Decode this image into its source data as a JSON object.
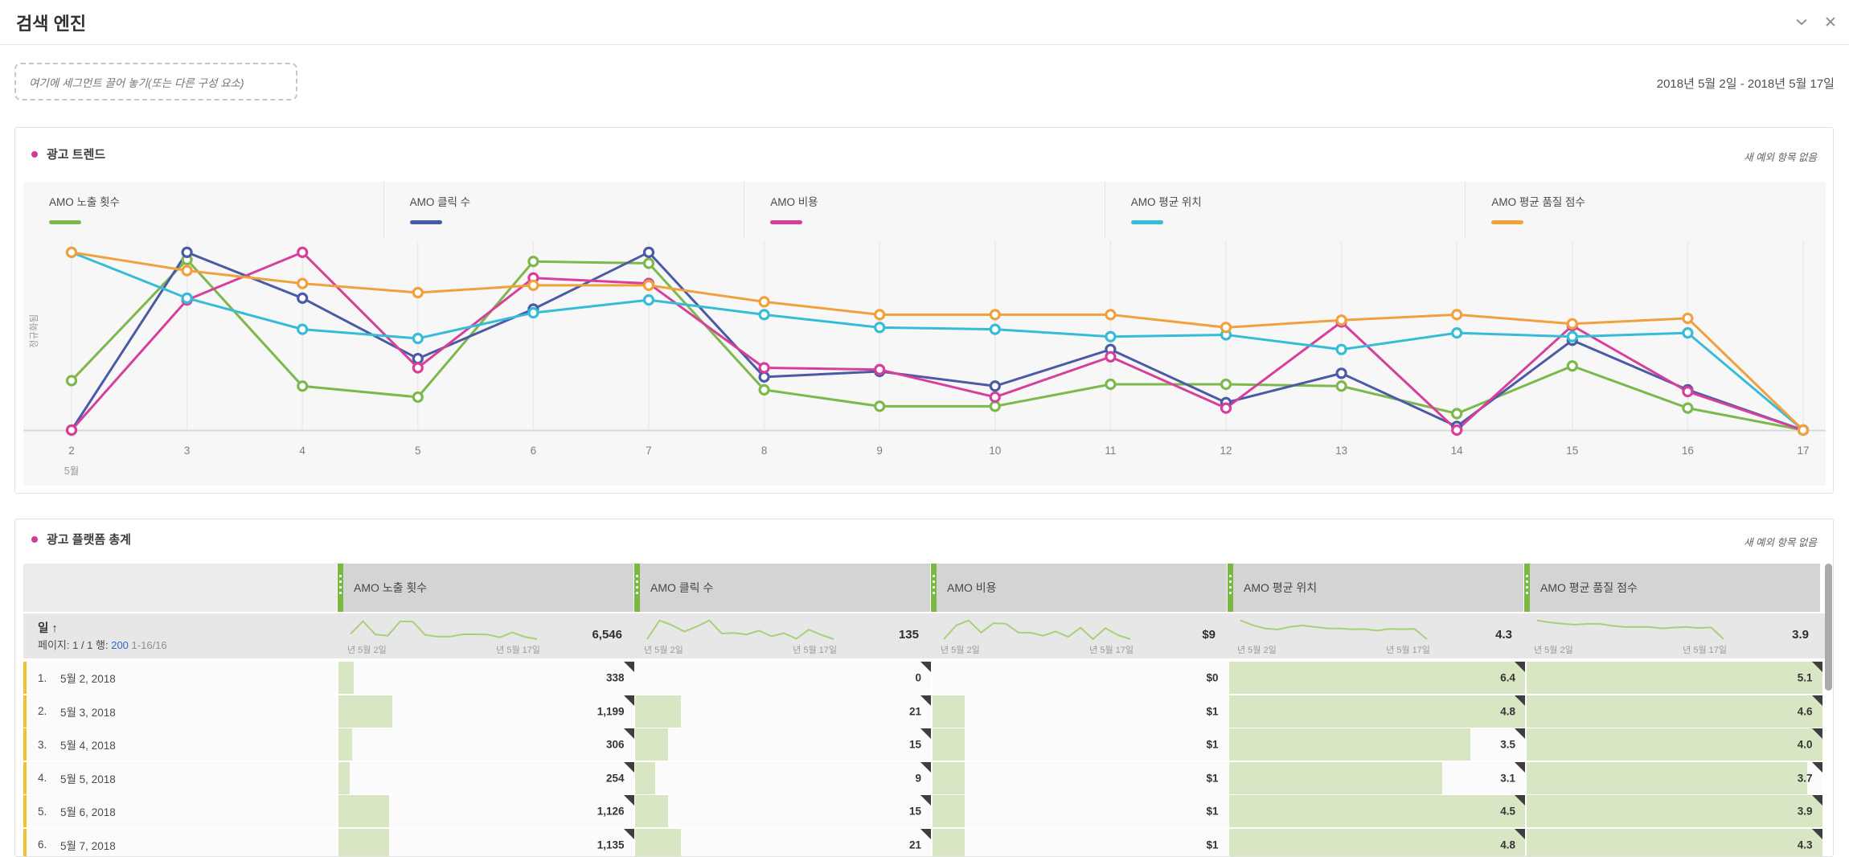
{
  "window": {
    "title": "검색 엔진"
  },
  "toolbar": {
    "segment_dropzone": "여기에 세그먼트 끌어 놓기(또는 다른 구성 요소)",
    "date_range": "2018년 5월 2일 - 2018년 5월 17일"
  },
  "panels": {
    "trend": {
      "title": "광고 트렌드",
      "no_anomalies": "새 예외 항목 없음"
    },
    "totals": {
      "title": "광고 플랫폼 총계",
      "no_anomalies": "새 예외 항목 없음"
    }
  },
  "chart_data": {
    "type": "line",
    "title": "광고 트렌드",
    "ylabel": "정규화됨",
    "xlabel_month": "5월",
    "x": [
      2,
      3,
      4,
      5,
      6,
      7,
      8,
      9,
      10,
      11,
      12,
      13,
      14,
      15,
      16,
      17
    ],
    "normalized": true,
    "ylim": [
      0,
      100
    ],
    "grid": "vertical",
    "legend_position": "top",
    "series": [
      {
        "name": "AMO 노출 횟수",
        "color": "#7cb84c",
        "values": [
          27,
          93,
          24,
          18,
          92,
          91,
          22,
          13,
          13,
          25,
          25,
          24,
          9,
          35,
          12,
          0
        ]
      },
      {
        "name": "AMO 클릭 수",
        "color": "#4a5aa5",
        "values": [
          0,
          97,
          72,
          39,
          66,
          97,
          29,
          32,
          24,
          44,
          15,
          31,
          2,
          49,
          22,
          0
        ]
      },
      {
        "name": "AMO 비용",
        "color": "#d6409b",
        "values": [
          0,
          71,
          97,
          34,
          83,
          80,
          34,
          33,
          18,
          40,
          12,
          59,
          0,
          57,
          21,
          0
        ]
      },
      {
        "name": "AMO 평균 위치",
        "color": "#36bcd6",
        "values": [
          97,
          72,
          55,
          50,
          64,
          71,
          63,
          56,
          55,
          51,
          52,
          44,
          53,
          51,
          53,
          0
        ]
      },
      {
        "name": "AMO 평균 품질 점수",
        "color": "#f0a13e",
        "values": [
          97,
          87,
          80,
          75,
          79,
          79,
          70,
          63,
          63,
          63,
          56,
          60,
          63,
          58,
          61,
          0
        ]
      }
    ]
  },
  "table": {
    "dimension": {
      "label": "일",
      "sort_arrow": "↑",
      "pagination_prefix": "페이지: 1 / 1 행:",
      "rows_link": "200",
      "range": "1-16/16"
    },
    "spark_labels": {
      "start": "년 5월 2일",
      "end": "년 5월 17일"
    },
    "columns": [
      {
        "label": "AMO 노출 횟수",
        "total": "6,546",
        "total_num": 6546,
        "style": "bar",
        "anomaly": true,
        "spark_series": 0
      },
      {
        "label": "AMO 클릭 수",
        "total": "135",
        "total_num": 135,
        "style": "bar",
        "anomaly": true,
        "spark_series": 1
      },
      {
        "label": "AMO 비용",
        "total": "$9",
        "total_num": 9,
        "style": "bar",
        "anomaly": false,
        "spark_series": 2
      },
      {
        "label": "AMO 평균 위치",
        "total": "4.3",
        "total_num": 4.3,
        "style": "fill",
        "anomaly": true,
        "spark_series": 3
      },
      {
        "label": "AMO 평균 품질 점수",
        "total": "3.9",
        "total_num": 3.9,
        "style": "fill",
        "anomaly": true,
        "spark_series": 4
      }
    ],
    "rows": [
      {
        "idx": "1.",
        "date": "5월 2, 2018",
        "cells": [
          {
            "text": "338",
            "num": 338
          },
          {
            "text": "0",
            "num": 0
          },
          {
            "text": "$0",
            "num": 0
          },
          {
            "text": "6.4",
            "num": 6.4
          },
          {
            "text": "5.1",
            "num": 5.1
          }
        ]
      },
      {
        "idx": "2.",
        "date": "5월 3, 2018",
        "cells": [
          {
            "text": "1,199",
            "num": 1199
          },
          {
            "text": "21",
            "num": 21
          },
          {
            "text": "$1",
            "num": 1
          },
          {
            "text": "4.8",
            "num": 4.8
          },
          {
            "text": "4.6",
            "num": 4.6
          }
        ]
      },
      {
        "idx": "3.",
        "date": "5월 4, 2018",
        "cells": [
          {
            "text": "306",
            "num": 306
          },
          {
            "text": "15",
            "num": 15
          },
          {
            "text": "$1",
            "num": 1
          },
          {
            "text": "3.5",
            "num": 3.5
          },
          {
            "text": "4.0",
            "num": 4.0
          }
        ]
      },
      {
        "idx": "4.",
        "date": "5월 5, 2018",
        "cells": [
          {
            "text": "254",
            "num": 254
          },
          {
            "text": "9",
            "num": 9
          },
          {
            "text": "$1",
            "num": 1
          },
          {
            "text": "3.1",
            "num": 3.1
          },
          {
            "text": "3.7",
            "num": 3.7
          }
        ]
      },
      {
        "idx": "5.",
        "date": "5월 6, 2018",
        "cells": [
          {
            "text": "1,126",
            "num": 1126
          },
          {
            "text": "15",
            "num": 15
          },
          {
            "text": "$1",
            "num": 1
          },
          {
            "text": "4.5",
            "num": 4.5
          },
          {
            "text": "3.9",
            "num": 3.9
          }
        ]
      },
      {
        "idx": "6.",
        "date": "5월 7, 2018",
        "cells": [
          {
            "text": "1,135",
            "num": 1135
          },
          {
            "text": "21",
            "num": 21
          },
          {
            "text": "$1",
            "num": 1
          },
          {
            "text": "4.8",
            "num": 4.8
          },
          {
            "text": "4.3",
            "num": 4.3
          }
        ]
      }
    ]
  },
  "colors": {
    "accent_dot": "#ce3d97",
    "table_bar_green": "#d8e6c4",
    "header_grip_green": "#79b943",
    "row_stripe_yellow": "#f2c12e",
    "link_blue": "#2b66c9",
    "anomaly_triangle": "#3e3e3e"
  }
}
